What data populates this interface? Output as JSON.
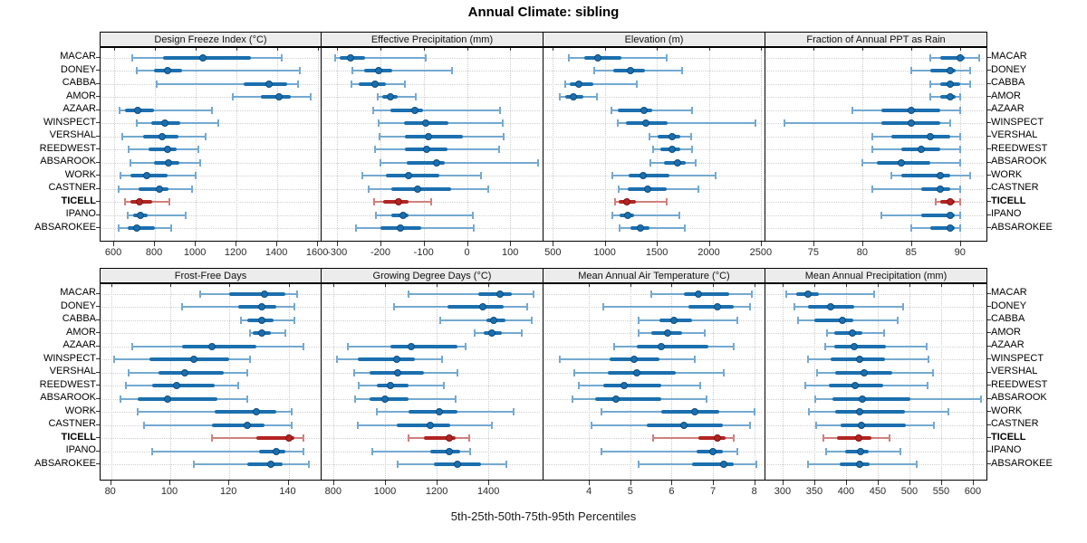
{
  "title": "Annual Climate: sibling",
  "caption": "5th-25th-50th-75th-95th Percentiles",
  "stations": [
    "MACAR",
    "DONEY",
    "CABBA",
    "AMOR",
    "AZAAR",
    "WINSPECT",
    "VERSHAL",
    "REEDWEST",
    "ABSAROOK",
    "WORK",
    "CASTNER",
    "TICELL",
    "IPANO",
    "ABSAROKEE"
  ],
  "highlight_station": "TICELL",
  "colors": {
    "blue_strong": "#1b6fae",
    "blue_light": "#74a9d0",
    "blue_edge": "#0f4c7c",
    "red_strong": "#b22421",
    "red_light": "#d0807c",
    "red_edge": "#7c1512",
    "strip_bg": "#ececec",
    "grid": "#cccccc",
    "border": "#000000"
  },
  "chart_data": [
    {
      "type": "dot-interval",
      "title": "Design Freeze Index (°C)",
      "xlim": [
        533,
        1622
      ],
      "ticks": [
        600,
        800,
        1000,
        1200,
        1400,
        1600
      ],
      "rows": [
        [
          690,
          840,
          1035,
          1270,
          1420
        ],
        [
          710,
          795,
          860,
          935,
          1510
        ],
        [
          810,
          1235,
          1360,
          1450,
          1500
        ],
        [
          1180,
          1320,
          1410,
          1465,
          1565
        ],
        [
          625,
          655,
          715,
          795,
          1080
        ],
        [
          710,
          780,
          850,
          925,
          1110
        ],
        [
          640,
          740,
          835,
          915,
          1050
        ],
        [
          670,
          770,
          860,
          905,
          1015
        ],
        [
          680,
          795,
          865,
          920,
          1020
        ],
        [
          630,
          680,
          760,
          860,
          1000
        ],
        [
          620,
          720,
          820,
          865,
          980
        ],
        [
          655,
          680,
          725,
          785,
          870
        ],
        [
          665,
          695,
          730,
          765,
          950
        ],
        [
          620,
          665,
          710,
          800,
          880
        ]
      ]
    },
    {
      "type": "dot-interval",
      "title": "Effective Precipitation (mm)",
      "xlim": [
        -336,
        177
      ],
      "ticks": [
        -300,
        -200,
        -100,
        0,
        100
      ],
      "rows": [
        [
          -305,
          -295,
          -269,
          -236,
          -95
        ],
        [
          -265,
          -237,
          -205,
          -173,
          -35
        ],
        [
          -268,
          -251,
          -213,
          -187,
          -143
        ],
        [
          -206,
          -195,
          -176,
          -160,
          -119
        ],
        [
          -216,
          -178,
          -120,
          -101,
          77
        ],
        [
          -204,
          -146,
          -96,
          -42,
          82
        ],
        [
          -202,
          -143,
          -89,
          -10,
          84
        ],
        [
          -213,
          -143,
          -94,
          -45,
          75
        ],
        [
          -199,
          -139,
          -71,
          -52,
          164
        ],
        [
          -242,
          -187,
          -136,
          -63,
          33
        ],
        [
          -227,
          -174,
          -115,
          -36,
          49
        ],
        [
          -214,
          -193,
          -159,
          -134,
          -82
        ],
        [
          -211,
          -174,
          -148,
          -134,
          13
        ],
        [
          -257,
          -199,
          -153,
          -105,
          15
        ]
      ]
    },
    {
      "type": "dot-interval",
      "title": "Elevation (m)",
      "xlim": [
        410,
        2544
      ],
      "ticks": [
        500,
        1000,
        1500,
        2000,
        2500
      ],
      "rows": [
        [
          650,
          800,
          935,
          1160,
          1590
        ],
        [
          900,
          1080,
          1245,
          1385,
          1740
        ],
        [
          615,
          660,
          745,
          890,
          1310
        ],
        [
          565,
          620,
          700,
          790,
          920
        ],
        [
          1065,
          1125,
          1380,
          1455,
          1835
        ],
        [
          1125,
          1200,
          1390,
          1600,
          2450
        ],
        [
          1433,
          1505,
          1645,
          1730,
          1830
        ],
        [
          1460,
          1535,
          1645,
          1725,
          1835
        ],
        [
          1435,
          1570,
          1695,
          1775,
          1875
        ],
        [
          1070,
          1225,
          1370,
          1620,
          2065
        ],
        [
          1130,
          1220,
          1415,
          1595,
          1900
        ],
        [
          1095,
          1130,
          1210,
          1295,
          1590
        ],
        [
          1075,
          1145,
          1220,
          1285,
          1715
        ],
        [
          1145,
          1250,
          1345,
          1430,
          1770
        ]
      ]
    },
    {
      "type": "dot-interval",
      "title": "Fraction of Annual PPT as Rain",
      "xlim": [
        70.1,
        92.8
      ],
      "ticks": [
        75,
        80,
        85,
        90
      ],
      "rows": [
        [
          87,
          88,
          90,
          90.5,
          92
        ],
        [
          85,
          87,
          89,
          89.6,
          91
        ],
        [
          87,
          88,
          89,
          90,
          91
        ],
        [
          87,
          88,
          89,
          89.6,
          90
        ],
        [
          79,
          82,
          85,
          88,
          90
        ],
        [
          72,
          82,
          85,
          88,
          89
        ],
        [
          81,
          83,
          87,
          89,
          90
        ],
        [
          81,
          84,
          86,
          88,
          90
        ],
        [
          80,
          81.5,
          84,
          87,
          90
        ],
        [
          83,
          84,
          88,
          89,
          91
        ],
        [
          81,
          86,
          88,
          89,
          90
        ],
        [
          87.5,
          88,
          89,
          89.5,
          90
        ],
        [
          82,
          86,
          89,
          89.5,
          90
        ],
        [
          85,
          87,
          89,
          89.5,
          90
        ]
      ]
    },
    {
      "type": "dot-interval",
      "title": "Frost-Free Days",
      "xlim": [
        76.4,
        151.5
      ],
      "ticks": [
        80,
        100,
        120,
        140
      ],
      "rows": [
        [
          110,
          120,
          132,
          139,
          143
        ],
        [
          104,
          123,
          131,
          136,
          142
        ],
        [
          124,
          126,
          131,
          135,
          142
        ],
        [
          127,
          128,
          131,
          134,
          139
        ],
        [
          87,
          104,
          114,
          129,
          145
        ],
        [
          81,
          93,
          108,
          120,
          127
        ],
        [
          86,
          96,
          105,
          118,
          126
        ],
        [
          85,
          94,
          102,
          115,
          123
        ],
        [
          83,
          89,
          99,
          116,
          126
        ],
        [
          89,
          115,
          129,
          136,
          141
        ],
        [
          91,
          114,
          126,
          132,
          141
        ],
        [
          114,
          129,
          140,
          142,
          145
        ],
        [
          94,
          130,
          136,
          139,
          145
        ],
        [
          108,
          126,
          134,
          138,
          147
        ]
      ]
    },
    {
      "type": "dot-interval",
      "title": "Growing Degree Days (°C)",
      "xlim": [
        755,
        1613
      ],
      "ticks": [
        800,
        1000,
        1200,
        1400
      ],
      "rows": [
        [
          1090,
          1360,
          1445,
          1490,
          1575
        ],
        [
          1035,
          1240,
          1378,
          1457,
          1550
        ],
        [
          1212,
          1393,
          1420,
          1466,
          1568
        ],
        [
          1345,
          1380,
          1414,
          1450,
          1530
        ],
        [
          858,
          1020,
          1103,
          1282,
          1310
        ],
        [
          815,
          895,
          1046,
          1116,
          1221
        ],
        [
          880,
          940,
          1050,
          1150,
          1280
        ],
        [
          897,
          967,
          1020,
          1090,
          1227
        ],
        [
          883,
          941,
          1000,
          1090,
          1274
        ],
        [
          967,
          1092,
          1210,
          1282,
          1498
        ],
        [
          895,
          1046,
          1175,
          1253,
          1413
        ],
        [
          1090,
          1150,
          1250,
          1275,
          1325
        ],
        [
          950,
          1175,
          1250,
          1290,
          1330
        ],
        [
          1050,
          1190,
          1280,
          1370,
          1470
        ]
      ]
    },
    {
      "type": "dot-interval",
      "title": "Mean Annual Air Temperature (°C)",
      "xlim": [
        2.9,
        8.27
      ],
      "ticks": [
        4,
        5,
        6,
        7,
        8
      ],
      "rows": [
        [
          5.5,
          6.3,
          6.65,
          7.4,
          7.95
        ],
        [
          4.35,
          6.4,
          7.1,
          7.5,
          7.9
        ],
        [
          5.2,
          5.7,
          6.05,
          6.5,
          7.6
        ],
        [
          5.2,
          5.5,
          5.9,
          6.25,
          6.8
        ],
        [
          4.6,
          5.15,
          5.75,
          6.9,
          7.5
        ],
        [
          3.3,
          4.5,
          5.1,
          5.7,
          6.55
        ],
        [
          3.65,
          4.45,
          5.15,
          6.1,
          7.25
        ],
        [
          3.75,
          4.35,
          4.85,
          5.75,
          6.7
        ],
        [
          3.6,
          4.15,
          4.65,
          5.75,
          6.85
        ],
        [
          4.3,
          5.75,
          6.55,
          7.15,
          8.0
        ],
        [
          4.05,
          5.4,
          6.3,
          7.25,
          7.9
        ],
        [
          5.55,
          6.65,
          7.1,
          7.3,
          7.5
        ],
        [
          4.3,
          6.6,
          7.0,
          7.25,
          7.6
        ],
        [
          5.2,
          6.5,
          7.25,
          7.5,
          8.05
        ]
      ]
    },
    {
      "type": "dot-interval",
      "title": "Mean Annual Precipitation (mm)",
      "xlim": [
        273,
        623
      ],
      "ticks": [
        300,
        350,
        400,
        450,
        500,
        550,
        600
      ],
      "rows": [
        [
          306,
          321,
          340,
          357,
          445
        ],
        [
          318,
          340,
          376,
          413,
          490
        ],
        [
          324,
          350,
          395,
          411,
          482
        ],
        [
          370,
          382,
          410,
          426,
          460
        ],
        [
          367,
          381,
          413,
          463,
          527
        ],
        [
          340,
          376,
          421,
          462,
          530
        ],
        [
          354,
          383,
          428,
          473,
          537
        ],
        [
          336,
          373,
          414,
          459,
          529
        ],
        [
          351,
          379,
          426,
          502,
          613
        ],
        [
          341,
          383,
          422,
          493,
          562
        ],
        [
          353,
          392,
          425,
          494,
          539
        ],
        [
          364,
          386,
          420,
          440,
          468
        ],
        [
          368,
          399,
          423,
          436,
          486
        ],
        [
          340,
          390,
          421,
          438,
          512
        ]
      ]
    }
  ]
}
